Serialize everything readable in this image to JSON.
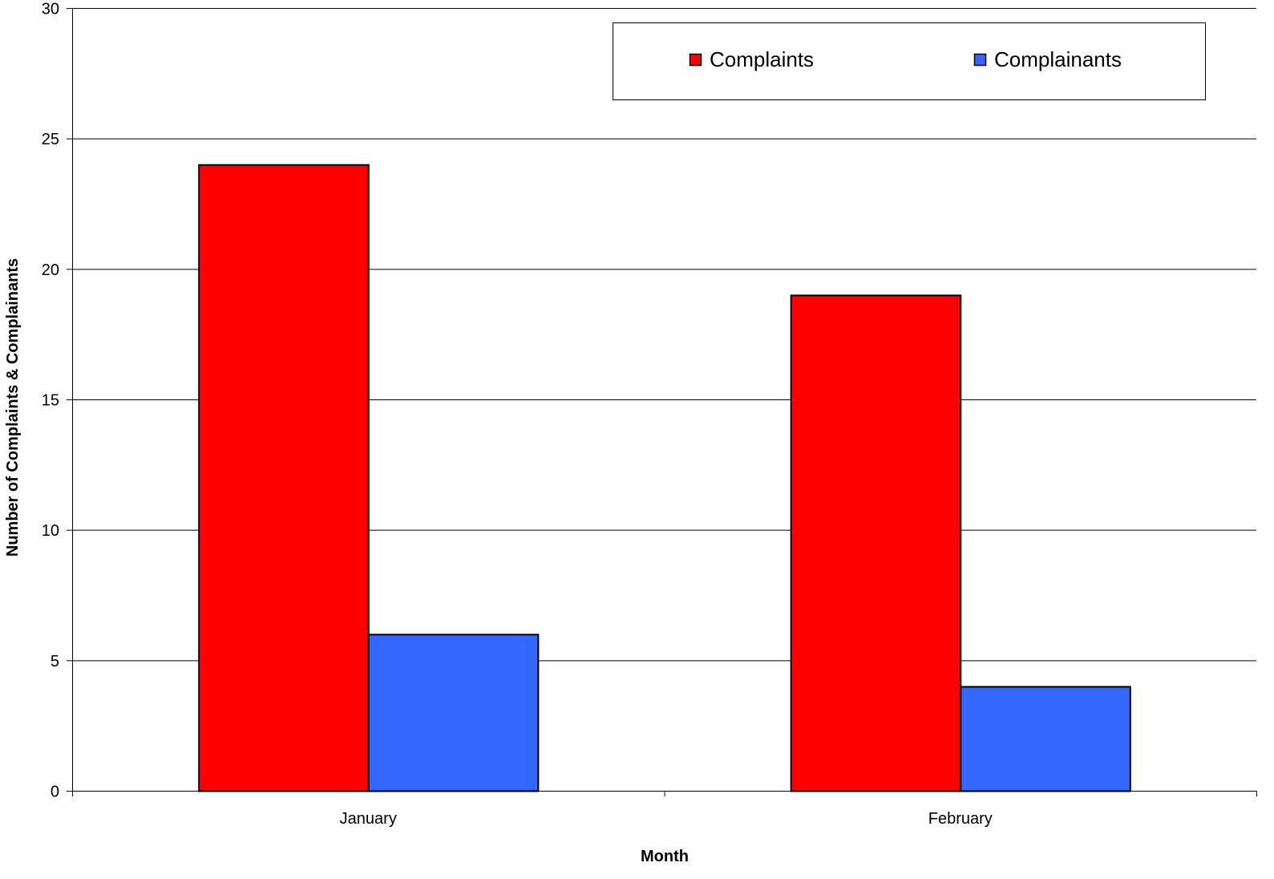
{
  "chart_data": {
    "type": "bar",
    "title": "",
    "xlabel": "Month",
    "ylabel": "Number of Complaints & Complainants",
    "categories": [
      "January",
      "February"
    ],
    "series": [
      {
        "name": "Complaints",
        "values": [
          24,
          19
        ],
        "color": "#FF0000"
      },
      {
        "name": "Complainants",
        "values": [
          6,
          4
        ],
        "color": "#3366FF"
      }
    ],
    "ylim": [
      0,
      30
    ],
    "yticks": [
      0,
      5,
      10,
      15,
      20,
      25,
      30
    ],
    "grid": true,
    "legend_position": "top-right"
  }
}
